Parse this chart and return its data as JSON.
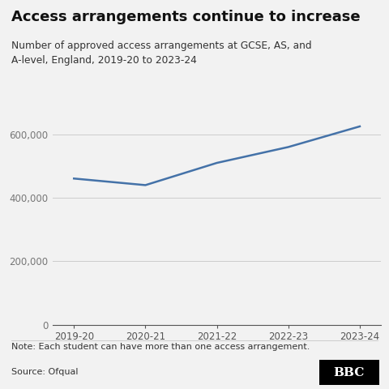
{
  "title": "Access arrangements continue to increase",
  "subtitle": "Number of approved access arrangements at GCSE, AS, and\nA-level, England, 2019-20 to 2023-24",
  "x_labels": [
    "2019-20",
    "2020-21",
    "2021-22",
    "2022-23",
    "2023-24"
  ],
  "y_values": [
    460750,
    440000,
    510000,
    560000,
    624975
  ],
  "line_color": "#4472a8",
  "background_color": "#f2f2f2",
  "ylim": [
    0,
    680000
  ],
  "yticks": [
    0,
    200000,
    400000,
    600000
  ],
  "note": "Note: Each student can have more than one access arrangement.",
  "source": "Source: Ofqual",
  "bbc_text": "BBC"
}
